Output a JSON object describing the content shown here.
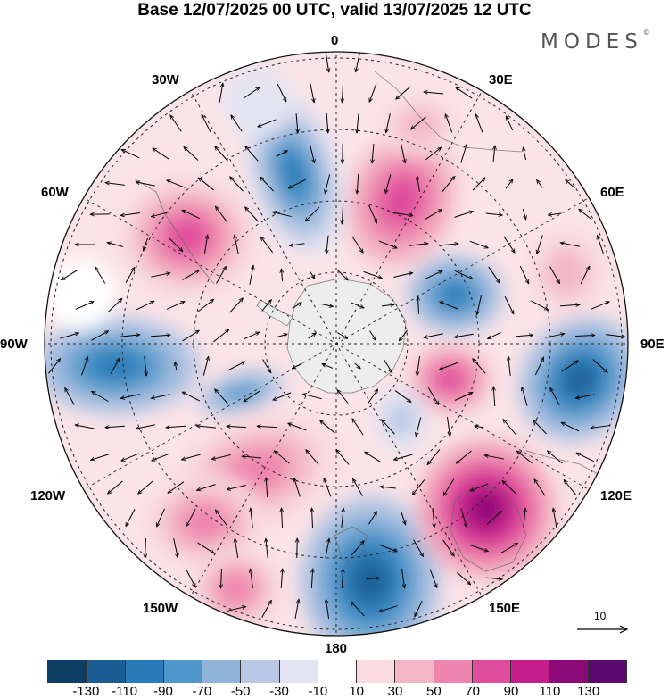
{
  "title": "Base 12/07/2025 00 UTC, valid 13/07/2025 12 UTC",
  "brand": "MODES",
  "brand_mark": "©",
  "lon_labels": {
    "n0": "0",
    "n30e": "30E",
    "n60e": "60E",
    "n90e": "90E",
    "n120e": "120E",
    "n150e": "150E",
    "n180": "180",
    "n150w": "150W",
    "n120w": "120W",
    "n90w": "90W",
    "n60w": "60W",
    "n30w": "30W"
  },
  "vector_reference": "10",
  "colorbar": {
    "colors": [
      "#0c3d63",
      "#1a5e93",
      "#2b7bb8",
      "#4f98cb",
      "#8fb3d9",
      "#b9c8e4",
      "#e3e4f1",
      "#ffffff",
      "#f9dbe0",
      "#f3b6c4",
      "#ee85ae",
      "#e04c9c",
      "#c61d8b",
      "#8c0a77",
      "#5a0a6e"
    ],
    "tick_labels": [
      "-130",
      "-110",
      "-90",
      "-70",
      "-50",
      "-30",
      "-10",
      "10",
      "30",
      "50",
      "70",
      "90",
      "110",
      "130"
    ]
  }
}
